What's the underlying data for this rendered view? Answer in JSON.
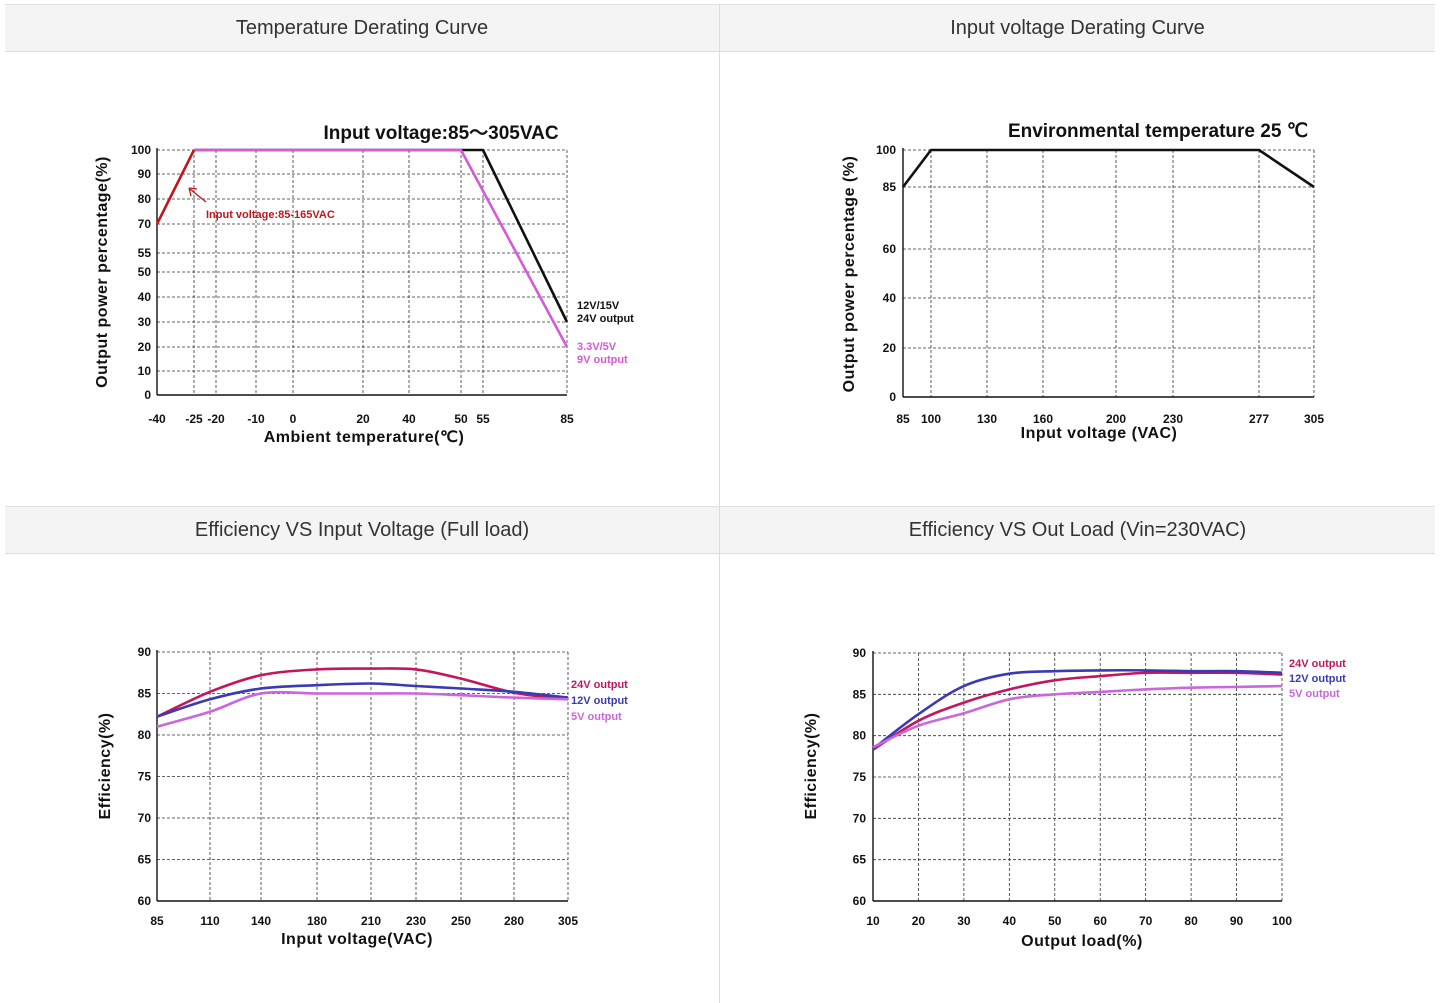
{
  "panels": [
    {
      "header": "Temperature Derating Curve"
    },
    {
      "header": "Input voltage Derating Curve"
    },
    {
      "header": "Efficiency VS Input Voltage (Full load)"
    },
    {
      "header": "Efficiency VS Out Load (Vin=230VAC)"
    }
  ],
  "colors": {
    "black": "#111111",
    "red": "#c0161c",
    "magenta": "#d45ad8",
    "crimson": "#c2185b",
    "blue": "#3a3ab5",
    "violet": "#cc66dd"
  },
  "chart_data": [
    {
      "type": "line",
      "title": "Input voltage:85～305VAC",
      "xlabel": "Ambient temperature(℃)",
      "ylabel": "Output power percentage(%)",
      "xlim": [
        -40,
        85
      ],
      "ylim": [
        0,
        100
      ],
      "x_ticks": [
        -40,
        -25,
        -20,
        -10,
        0,
        20,
        40,
        50,
        55,
        85
      ],
      "y_ticks": [
        0,
        10,
        20,
        30,
        40,
        50,
        55,
        70,
        80,
        90,
        100
      ],
      "x_tick_labels": [
        "-40",
        "-25",
        "-20",
        "-10",
        "0",
        "20",
        "40",
        "50",
        "55",
        "85"
      ],
      "y_tick_labels": [
        "0",
        "10",
        "20",
        "30",
        "40",
        "50",
        "55",
        "70",
        "80",
        "90",
        "100"
      ],
      "grid": true,
      "series": [
        {
          "name": "12V/15V 24V output",
          "label_lines": [
            "12V/15V",
            "24V output"
          ],
          "color": "#111111",
          "x": [
            -25,
            55,
            85
          ],
          "y": [
            100,
            100,
            30
          ]
        },
        {
          "name": "3.3V/5V 9V output",
          "label_lines": [
            "3.3V/5V",
            "9V output"
          ],
          "color": "#d45ad8",
          "x": [
            -25,
            50,
            85
          ],
          "y": [
            100,
            100,
            20
          ]
        },
        {
          "name": "Input voltage:85-165VAC",
          "label_lines": [
            "Input voltage:85-165VAC"
          ],
          "color": "#c0161c",
          "x": [
            -40,
            -25
          ],
          "y": [
            70,
            100
          ]
        }
      ]
    },
    {
      "type": "line",
      "title": "Environmental temperature 25 ℃",
      "xlabel": "Input voltage (VAC)",
      "ylabel": "Output power percentage (%)",
      "xlim": [
        85,
        305
      ],
      "ylim": [
        0,
        100
      ],
      "x_ticks": [
        85,
        100,
        130,
        160,
        200,
        230,
        277,
        305
      ],
      "y_ticks": [
        0,
        20,
        40,
        60,
        85,
        100
      ],
      "x_tick_labels": [
        "85",
        "100",
        "130",
        "160",
        "200",
        "230",
        "277",
        "305"
      ],
      "y_tick_labels": [
        "0",
        "20",
        "40",
        "60",
        "85",
        "100"
      ],
      "grid": true,
      "series": [
        {
          "color": "#111111",
          "x": [
            85,
            100,
            277,
            305
          ],
          "y": [
            85,
            100,
            100,
            85
          ]
        }
      ]
    },
    {
      "type": "line",
      "title": "",
      "xlabel": "Input voltage(VAC)",
      "ylabel": "Efficiency(%)",
      "xlim": [
        85,
        305
      ],
      "ylim": [
        60,
        90
      ],
      "x_ticks": [
        85,
        110,
        140,
        180,
        210,
        230,
        250,
        280,
        305
      ],
      "y_ticks": [
        60,
        65,
        70,
        75,
        80,
        85,
        90
      ],
      "x_tick_labels": [
        "85",
        "110",
        "140",
        "180",
        "210",
        "230",
        "250",
        "280",
        "305"
      ],
      "y_tick_labels": [
        "60",
        "65",
        "70",
        "75",
        "80",
        "85",
        "90"
      ],
      "grid": true,
      "series": [
        {
          "name": "24V output",
          "label_lines": [
            "24V output"
          ],
          "color": "#c2185b",
          "x": [
            85,
            110,
            140,
            180,
            210,
            230,
            250,
            280,
            305
          ],
          "y": [
            82.2,
            85.2,
            87.2,
            87.9,
            88.0,
            87.9,
            86.8,
            85.1,
            84.3
          ]
        },
        {
          "name": "12V output",
          "label_lines": [
            "12V output"
          ],
          "color": "#3a3ab5",
          "x": [
            85,
            110,
            140,
            180,
            210,
            230,
            250,
            280,
            305
          ],
          "y": [
            82.2,
            84.3,
            85.6,
            86.0,
            86.2,
            85.9,
            85.6,
            85.2,
            84.5
          ]
        },
        {
          "name": "5V output",
          "label_lines": [
            "5V output"
          ],
          "color": "#cc66dd",
          "x": [
            85,
            110,
            140,
            180,
            210,
            230,
            250,
            280,
            305
          ],
          "y": [
            81.0,
            82.8,
            85.0,
            85.0,
            85.0,
            85.0,
            84.8,
            84.5,
            84.3
          ]
        }
      ]
    },
    {
      "type": "line",
      "title": "",
      "xlabel": "Output load(%)",
      "ylabel": "Efficiency(%)",
      "xlim": [
        10,
        100
      ],
      "ylim": [
        60,
        90
      ],
      "x_ticks": [
        10,
        20,
        30,
        40,
        50,
        60,
        70,
        80,
        90,
        100
      ],
      "y_ticks": [
        60,
        65,
        70,
        75,
        80,
        85,
        90
      ],
      "x_tick_labels": [
        "10",
        "20",
        "30",
        "40",
        "50",
        "60",
        "70",
        "80",
        "90",
        "100"
      ],
      "y_tick_labels": [
        "60",
        "65",
        "70",
        "75",
        "80",
        "85",
        "90"
      ],
      "grid": true,
      "series": [
        {
          "name": "24V output",
          "label_lines": [
            "24V output"
          ],
          "color": "#c2185b",
          "x": [
            10,
            20,
            30,
            40,
            50,
            60,
            70,
            80,
            90,
            100
          ],
          "y": [
            78.3,
            81.8,
            84.0,
            85.6,
            86.7,
            87.2,
            87.6,
            87.6,
            87.6,
            87.4
          ]
        },
        {
          "name": "12V output",
          "label_lines": [
            "12V output"
          ],
          "color": "#3a3ab5",
          "x": [
            10,
            20,
            30,
            40,
            50,
            60,
            70,
            80,
            90,
            100
          ],
          "y": [
            78.4,
            82.6,
            86.0,
            87.5,
            87.8,
            87.9,
            87.9,
            87.8,
            87.8,
            87.6
          ]
        },
        {
          "name": "5V output",
          "label_lines": [
            "5V output"
          ],
          "color": "#cc66dd",
          "x": [
            10,
            20,
            30,
            40,
            50,
            60,
            70,
            80,
            90,
            100
          ],
          "y": [
            78.6,
            81.2,
            82.7,
            84.4,
            85.0,
            85.3,
            85.6,
            85.8,
            85.9,
            86.0
          ]
        }
      ]
    }
  ]
}
